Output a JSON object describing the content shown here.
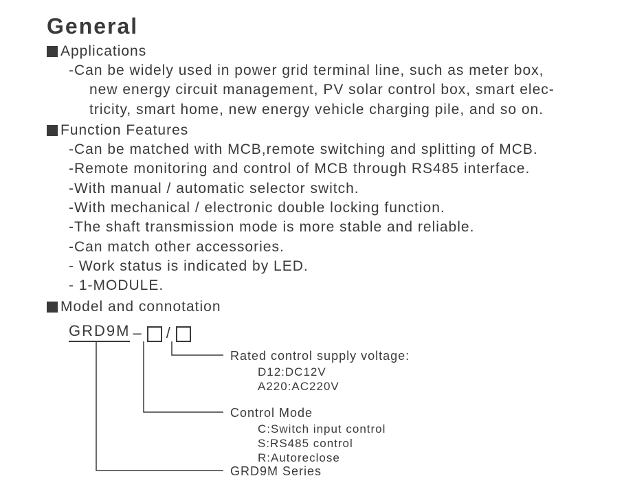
{
  "title": "General",
  "sections": {
    "applications": {
      "heading": "Applications",
      "lines": [
        {
          "text": "-Can be widely used in power grid terminal line, such as meter box,",
          "cont": false
        },
        {
          "text": "new energy circuit management, PV solar control box, smart elec-",
          "cont": true
        },
        {
          "text": "tricity, smart home, new energy vehicle charging pile, and so on.",
          "cont": true
        }
      ]
    },
    "features": {
      "heading": "Function Features",
      "lines": [
        {
          "text": "-Can be matched with MCB,remote switching and splitting of MCB.",
          "cont": false
        },
        {
          "text": "-Remote monitoring and control of MCB through RS485 interface.",
          "cont": false
        },
        {
          "text": "-With manual / automatic selector switch.",
          "cont": false
        },
        {
          "text": "-With mechanical / electronic double locking function.",
          "cont": false
        },
        {
          "text": "-The shaft transmission mode is more stable and reliable.",
          "cont": false
        },
        {
          "text": "-Can match other accessories.",
          "cont": false
        },
        {
          "text": "- Work status is indicated by LED.",
          "cont": false
        },
        {
          "text": "- 1-MODULE.",
          "cont": false
        }
      ]
    },
    "model": {
      "heading": "Model and connotation",
      "code_prefix": "GRD9M",
      "dash": "–",
      "slash": "/",
      "callouts": {
        "voltage": {
          "title": "Rated control supply voltage:",
          "opts": [
            "D12:DC12V",
            "A220:AC220V"
          ]
        },
        "mode": {
          "title": "Control Mode",
          "opts": [
            "C:Switch input control",
            "S:RS485 control",
            "R:Autoreclose"
          ]
        },
        "series": {
          "title": "GRD9M Series"
        }
      }
    }
  },
  "style": {
    "text_color": "#3a3a3a",
    "bg_color": "#ffffff",
    "title_fontsize": 32,
    "body_fontsize": 21,
    "label_fontsize": 18,
    "square_size": 16,
    "diagram": {
      "drop_seg1_x": 40,
      "drop_seg2_x": 109,
      "drop_seg3_x": 150,
      "horiz_end_x": 225,
      "voltage_y": 22,
      "mode_y": 105,
      "series_y": 190
    }
  }
}
